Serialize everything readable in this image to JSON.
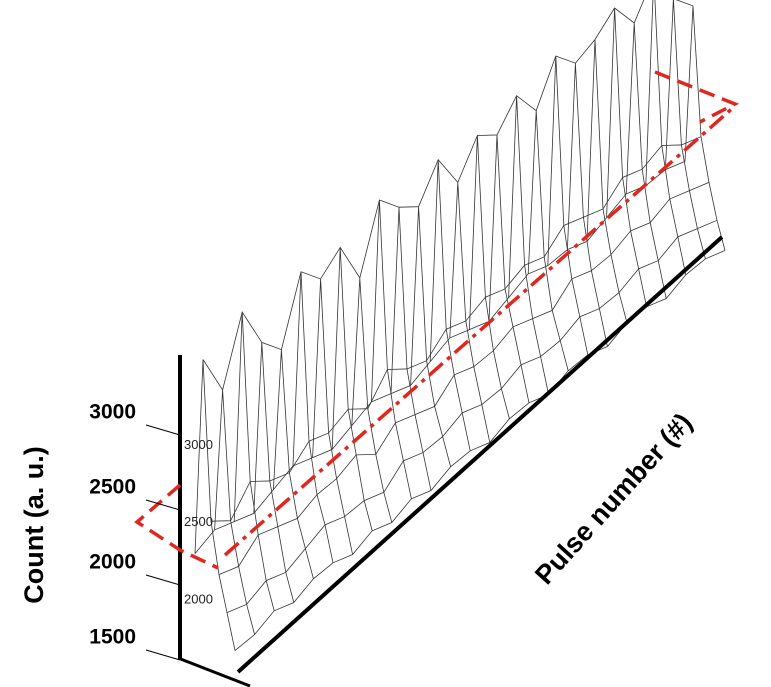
{
  "chart_data": {
    "type": "surface",
    "ylabel": "Count (a. u.)",
    "xlabel": "Pulse number (#)",
    "ylim": [
      1350,
      3390
    ],
    "yticks": [
      1500,
      2000,
      2500,
      3000
    ],
    "zlim": [
      1800,
      3700
    ],
    "zticks": [
      2000,
      2500,
      3000
    ],
    "color": "#333333",
    "z": [
      [
        2300,
        3600,
        2600,
        2300,
        2100,
        1900
      ],
      [
        2350,
        3300,
        2500,
        2250,
        2050,
        1900
      ],
      [
        2300,
        3700,
        2650,
        2350,
        2100,
        1950
      ],
      [
        2250,
        3400,
        2550,
        2300,
        2050,
        1900
      ],
      [
        2300,
        3250,
        2500,
        2250,
        2100,
        1950
      ],
      [
        2350,
        3650,
        2600,
        2300,
        2150,
        1950
      ],
      [
        2300,
        3500,
        2550,
        2300,
        2100,
        1900
      ],
      [
        2250,
        3600,
        2600,
        2350,
        2100,
        1950
      ],
      [
        2300,
        3300,
        2500,
        2250,
        2050,
        1900
      ],
      [
        2350,
        3700,
        2650,
        2350,
        2150,
        1950
      ],
      [
        2300,
        3550,
        2550,
        2300,
        2100,
        1900
      ],
      [
        2250,
        3450,
        2500,
        2250,
        2100,
        1950
      ],
      [
        2300,
        3650,
        2600,
        2350,
        2150,
        1950
      ],
      [
        2350,
        3400,
        2550,
        2300,
        2100,
        1900
      ],
      [
        2300,
        3600,
        2600,
        2300,
        2100,
        1950
      ],
      [
        2250,
        3500,
        2550,
        2350,
        2150,
        1950
      ],
      [
        2300,
        3650,
        2600,
        2300,
        2100,
        1900
      ],
      [
        2350,
        3450,
        2550,
        2250,
        2100,
        1950
      ],
      [
        2300,
        3700,
        2650,
        2350,
        2150,
        1950
      ],
      [
        2300,
        3550,
        2600,
        2300,
        2100,
        1900
      ],
      [
        2250,
        3600,
        2550,
        2300,
        2100,
        1950
      ],
      [
        2300,
        3700,
        2650,
        2350,
        2150,
        1950
      ],
      [
        2350,
        3500,
        2600,
        2300,
        2100,
        1900
      ],
      [
        2300,
        3700,
        2650,
        2350,
        2150,
        1950
      ],
      [
        2300,
        3450,
        2550,
        2300,
        2100,
        1950
      ],
      [
        2250,
        3300,
        2500,
        2250,
        2050,
        1900
      ]
    ]
  }
}
